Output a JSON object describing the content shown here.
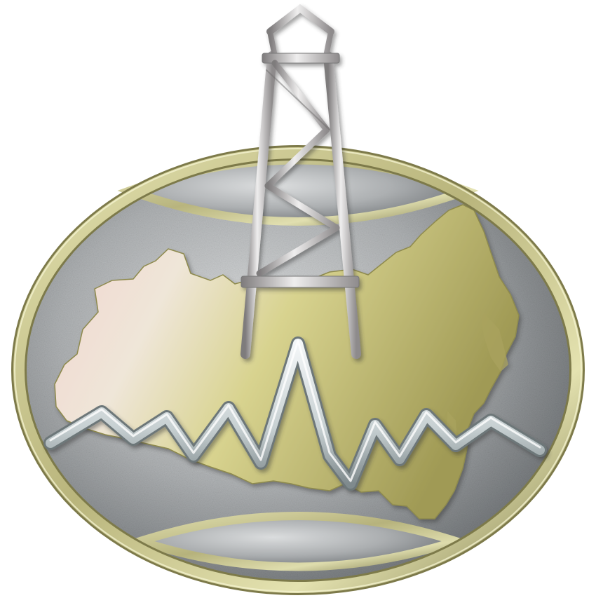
{
  "logo": {
    "name": "oil-derrick-russia-map-emblem",
    "colors": {
      "background": "#ffffff",
      "ring_gold_light": "#e4e2b0",
      "ring_gold_mid": "#b9b57c",
      "ring_gold_dark": "#7d7a4a",
      "plate_silver_light": "#dfe1e2",
      "plate_silver_mid": "#aeb1b3",
      "plate_silver_dark": "#6f7376",
      "map_pink": "#f1d3cf",
      "map_gold": "#d8d38f",
      "map_olive": "#a09a55",
      "wave_silver_light": "#f4f7f8",
      "wave_silver_dark": "#7f8a8d",
      "derrick_light": "#efeeee",
      "derrick_mid": "#bfbcbc",
      "derrick_dark": "#7e7b7c"
    },
    "elements": [
      "oil-derrick-icon",
      "russia-map-silhouette",
      "seismic-wave-line",
      "gold-oval-ring",
      "silver-textured-plate"
    ]
  }
}
